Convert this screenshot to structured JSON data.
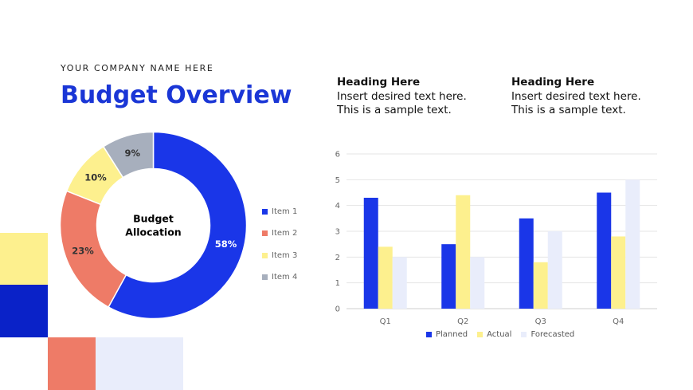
{
  "company": "YOUR COMPANY NAME HERE",
  "title": "Budget Overview",
  "text_blocks": [
    {
      "heading": "Heading Here",
      "line1": "Insert desired text here.",
      "line2": "This is a sample text."
    },
    {
      "heading": "Heading Here",
      "line1": "Insert desired text here.",
      "line2": "This is a sample text."
    }
  ],
  "colors": {
    "blue": "#1A36E8",
    "coral": "#EE7B67",
    "yellow": "#FDF08E",
    "gray": "#A7AFBD",
    "lavender": "#E9EDFB"
  },
  "chart_data": [
    {
      "type": "pie",
      "center_label": [
        "Budget",
        "Allocation"
      ],
      "categories": [
        "Item 1",
        "Item 2",
        "Item 3",
        "Item 4"
      ],
      "values": [
        58,
        23,
        10,
        9
      ],
      "data_labels": [
        "58%",
        "23%",
        "10%",
        "9%"
      ],
      "legend_position": "right"
    },
    {
      "type": "bar",
      "categories": [
        "Q1",
        "Q2",
        "Q3",
        "Q4"
      ],
      "series": [
        {
          "name": "Planned",
          "values": [
            4.3,
            2.5,
            3.5,
            4.5
          ]
        },
        {
          "name": "Actual",
          "values": [
            2.4,
            4.4,
            1.8,
            2.8
          ]
        },
        {
          "name": "Forecasted",
          "values": [
            2,
            2,
            3,
            5
          ]
        }
      ],
      "ylim": [
        0,
        6
      ],
      "yticks": [
        0,
        1,
        2,
        3,
        4,
        5,
        6
      ],
      "grid": true,
      "legend_position": "bottom"
    }
  ]
}
